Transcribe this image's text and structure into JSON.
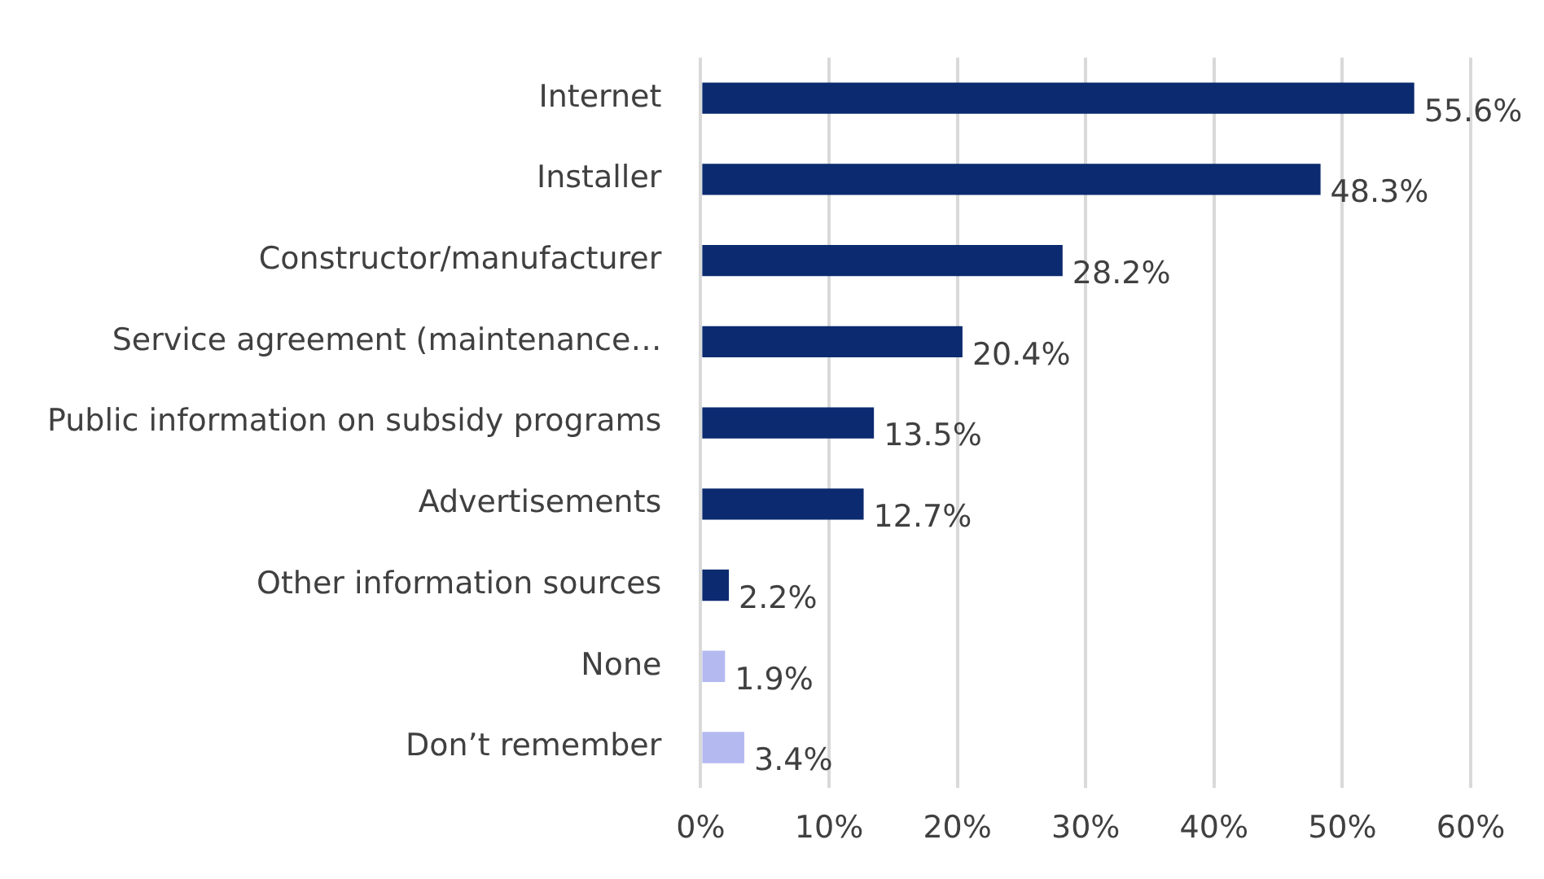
{
  "chart_data": {
    "type": "bar",
    "orientation": "horizontal",
    "categories": [
      "Internet",
      "Installer",
      "Constructor/manufacturer",
      "Service agreement (maintenance…",
      "Public information on subsidy programs",
      "Advertisements",
      "Other information sources",
      "None",
      "Don’t remember"
    ],
    "values": [
      55.6,
      48.3,
      28.2,
      20.4,
      13.5,
      12.7,
      2.2,
      1.9,
      3.4
    ],
    "colors": [
      "#0b2a6f",
      "#0b2a6f",
      "#0b2a6f",
      "#0b2a6f",
      "#0b2a6f",
      "#0b2a6f",
      "#0b2a6f",
      "#b4baf0",
      "#b4baf0"
    ],
    "value_labels": [
      "55.6%",
      "48.3%",
      "28.2%",
      "20.4%",
      "13.5%",
      "12.7%",
      "2.2%",
      "1.9%",
      "3.4%"
    ],
    "xlim": [
      0,
      60
    ],
    "xticks": [
      {
        "value": 0,
        "label": "0%"
      },
      {
        "value": 10,
        "label": "10%"
      },
      {
        "value": 20,
        "label": "20%"
      },
      {
        "value": 30,
        "label": "30%"
      },
      {
        "value": 40,
        "label": "40%"
      },
      {
        "value": 50,
        "label": "50%"
      },
      {
        "value": 60,
        "label": "60%"
      }
    ],
    "grid": "x",
    "legend": false
  }
}
